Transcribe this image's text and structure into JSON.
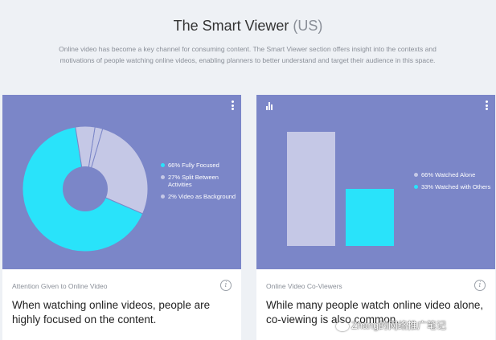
{
  "header": {
    "title": "The Smart Viewer",
    "region": "(US)",
    "description": "Online video has become a key channel for consuming content. The Smart Viewer section offers insight into the contexts and motivations of people watching online videos, enabling planners to better understand and target their audience in this space."
  },
  "cards": [
    {
      "caption": "Attention Given to Online Video",
      "headline": "When watching online videos, people are highly focused on the content.",
      "more_icon": "more-vertical-icon",
      "info_icon": "info-icon",
      "info_glyph": "i",
      "chart_data": {
        "type": "pie",
        "style": "donut",
        "slices": [
          {
            "label": "66% Fully Focused",
            "value": 66,
            "color": "#29e3fa"
          },
          {
            "label": "27% Split Between Activities",
            "value": 27,
            "color": "#c5c8e6"
          },
          {
            "label": "2% Video as Background",
            "value": 2,
            "color": "#c5c8e6"
          }
        ]
      }
    },
    {
      "caption": "Online Video Co-Viewers",
      "headline": "While many people watch online video alone, co-viewing is also common.",
      "more_icon": "more-vertical-icon",
      "info_icon": "info-icon",
      "info_glyph": "i",
      "chart_icon": "bar-chart-icon",
      "chart_data": {
        "type": "bar",
        "categories": [
          "66% Watched Alone",
          "33% Watched with Others"
        ],
        "values": [
          66,
          33
        ],
        "colors": [
          "#c5c8e6",
          "#29e3fa"
        ],
        "ylim": [
          0,
          66
        ],
        "grid": false
      }
    }
  ],
  "colors": {
    "viz_bg": "#7b86c8",
    "accent": "#29e3fa",
    "muted": "#c5c8e6",
    "page_bg": "#eef1f5"
  },
  "watermark": {
    "text": "Zhang的网络推广笔记"
  }
}
